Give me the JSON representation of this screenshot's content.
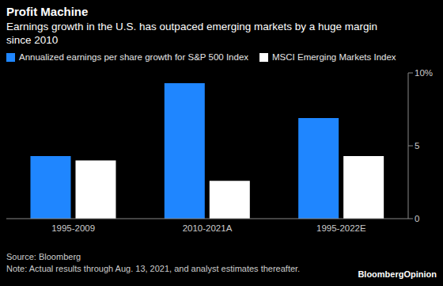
{
  "chart_data": {
    "type": "bar",
    "title": "Profit Machine",
    "subtitle": "Earnings growth in the U.S. has outpaced emerging markets by a huge margin since 2010",
    "categories": [
      "1995-2009",
      "2010-2021A",
      "1995-2022E"
    ],
    "series": [
      {
        "name": "Annualized earnings per share growth for S&P 500 Index",
        "color": "#1f86ff",
        "values": [
          4.3,
          9.3,
          6.9
        ]
      },
      {
        "name": "MSCI Emerging Markets Index",
        "color": "#ffffff",
        "values": [
          4.0,
          2.6,
          4.3
        ]
      }
    ],
    "ylim": [
      0,
      10
    ],
    "yticks": [
      0,
      5,
      {
        "value": 10,
        "label": "10%"
      }
    ],
    "grid": false,
    "legend": "top",
    "source": "Source: Bloomberg",
    "note": "Note: Actual results through Aug. 13, 2021, and analyst estimates thereafter.",
    "logo": "BloombergOpinion"
  }
}
